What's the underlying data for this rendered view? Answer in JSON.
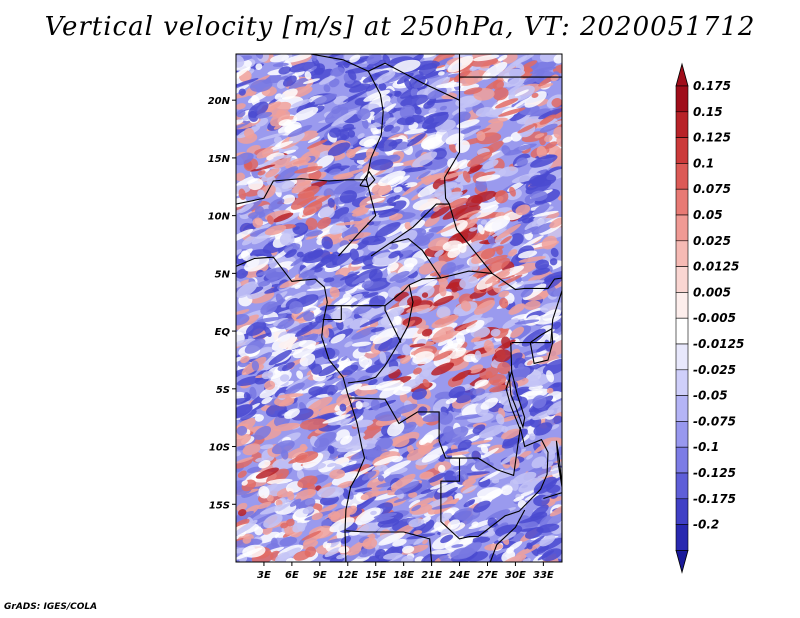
{
  "title": "Vertical velocity [m/s] at 250hPa, VT: 2020051712",
  "footer": "GrADS: IGES/COLA",
  "map": {
    "lon_range": [
      0,
      35
    ],
    "lat_range": [
      -20,
      24
    ],
    "lat_ticks": [
      {
        "value": 20,
        "label": "20N"
      },
      {
        "value": 15,
        "label": "15N"
      },
      {
        "value": 10,
        "label": "10N"
      },
      {
        "value": 5,
        "label": "5N"
      },
      {
        "value": 0,
        "label": "EQ"
      },
      {
        "value": -5,
        "label": "5S"
      },
      {
        "value": -10,
        "label": "10S"
      },
      {
        "value": -15,
        "label": "15S"
      }
    ],
    "lon_ticks": [
      {
        "value": 3,
        "label": "3E"
      },
      {
        "value": 6,
        "label": "6E"
      },
      {
        "value": 9,
        "label": "9E"
      },
      {
        "value": 12,
        "label": "12E"
      },
      {
        "value": 15,
        "label": "15E"
      },
      {
        "value": 18,
        "label": "18E"
      },
      {
        "value": 21,
        "label": "21E"
      },
      {
        "value": 24,
        "label": "24E"
      },
      {
        "value": 27,
        "label": "27E"
      },
      {
        "value": 30,
        "label": "30E"
      },
      {
        "value": 33,
        "label": "33E"
      }
    ]
  },
  "colorbar": {
    "levels": [
      {
        "label": "0.175",
        "color": "#a00d1a"
      },
      {
        "label": "0.15",
        "color": "#b82228"
      },
      {
        "label": "0.125",
        "color": "#cc3a3a"
      },
      {
        "label": "0.1",
        "color": "#dc5a56"
      },
      {
        "label": "0.075",
        "color": "#e87a74"
      },
      {
        "label": "0.05",
        "color": "#f09a94"
      },
      {
        "label": "0.025",
        "color": "#f6bab4"
      },
      {
        "label": "0.0125",
        "color": "#fad6d2"
      },
      {
        "label": "0.005",
        "color": "#fdeeec"
      },
      {
        "label": "-0.005",
        "color": "#ffffff"
      },
      {
        "label": "-0.0125",
        "color": "#e8e8fc"
      },
      {
        "label": "-0.025",
        "color": "#cfcffa"
      },
      {
        "label": "-0.05",
        "color": "#b4b4f6"
      },
      {
        "label": "-0.075",
        "color": "#9898ef"
      },
      {
        "label": "-0.1",
        "color": "#7c7ce6"
      },
      {
        "label": "-0.125",
        "color": "#5e5ed8"
      },
      {
        "label": "-0.175",
        "color": "#4040c6"
      },
      {
        "label": "-0.2",
        "color": "#2828b0"
      }
    ],
    "top_color": "#a00d1a",
    "bottom_color": "#1a1a9a"
  },
  "field_colors": {
    "background": "#9a9aee",
    "strong_red": "#b82228",
    "red": "#e06a64",
    "light_red": "#f0a09a",
    "white": "#ffffff",
    "light_blue": "#c4c4f6",
    "blue": "#7878e2",
    "dark_blue": "#4a4ad0"
  }
}
